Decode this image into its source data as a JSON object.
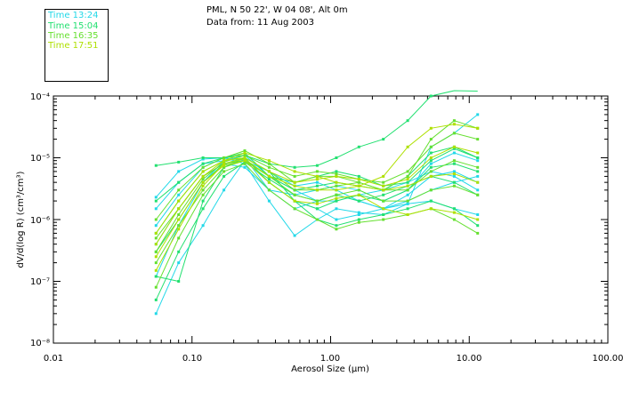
{
  "header": {
    "site": "PML, N 50 22', W 04 08', Alt 0m",
    "date": "Data from: 11 Aug 2003"
  },
  "legend": [
    {
      "label": "Time 13:24",
      "color": "#22d8e8"
    },
    {
      "label": "Time 15:04",
      "color": "#22e070"
    },
    {
      "label": "Time 16:35",
      "color": "#66e030"
    },
    {
      "label": "Time 17:51",
      "color": "#aee000"
    }
  ],
  "chart_data": {
    "type": "line",
    "title": "",
    "xlabel": "Aerosol Size (μm)",
    "ylabel": "dV/d(log R) (cm³/cm³)",
    "xscale": "log",
    "yscale": "log",
    "xlim": [
      0.01,
      100.0
    ],
    "ylim": [
      1e-08,
      0.0001
    ],
    "x_tick_labels": [
      "0.01",
      "0.10",
      "1.00",
      "10.00",
      "100.00"
    ],
    "y_tick_labels": [
      "10⁻⁸",
      "10⁻⁷",
      "10⁻⁶",
      "10⁻⁵",
      "10⁻⁴"
    ],
    "legend_position": "top-left",
    "x": [
      0.055,
      0.08,
      0.12,
      0.17,
      0.24,
      0.36,
      0.55,
      0.8,
      1.1,
      1.6,
      2.4,
      3.6,
      5.3,
      7.8,
      11.5
    ],
    "series": [
      {
        "name": "Time 13:24",
        "color": "#22d8e8",
        "curves": [
          [
            2.3e-06,
            6e-06,
            9.5e-06,
            1e-05,
            8e-06,
            2e-06,
            5.5e-07,
            1e-06,
            1.5e-06,
            1.3e-06,
            1.2e-06,
            1.8e-06,
            1.5e-05,
            2.5e-05,
            5e-05
          ],
          [
            1.5e-06,
            4e-06,
            8e-06,
            9e-06,
            1e-05,
            3e-06,
            1.5e-06,
            2e-06,
            2.5e-06,
            2e-06,
            1.5e-06,
            2.5e-06,
            5e-06,
            6e-06,
            4e-06
          ],
          [
            8e-07,
            2.5e-06,
            7e-06,
            1e-05,
            9e-06,
            4e-06,
            2e-06,
            1.5e-06,
            1e-06,
            1.2e-06,
            1.5e-06,
            1.8e-06,
            2e-06,
            1.5e-06,
            1.2e-06
          ],
          [
            4e-07,
            1.5e-06,
            5e-06,
            8e-06,
            7e-06,
            3e-06,
            2.5e-06,
            3e-06,
            3.5e-06,
            3e-06,
            2e-06,
            3e-06,
            8e-06,
            1.2e-05,
            9e-06
          ],
          [
            1.2e-07,
            8e-07,
            4e-06,
            9e-06,
            1.1e-05,
            5e-06,
            3e-06,
            2e-06,
            2e-06,
            2.5e-06,
            3e-06,
            4e-06,
            6e-06,
            5e-06,
            3e-06
          ],
          [
            3e-08,
            2e-07,
            8e-07,
            3e-06,
            9e-06,
            6e-06,
            3.5e-06,
            4e-06,
            3e-06,
            2e-06,
            1.5e-06,
            2e-06,
            3e-06,
            4e-06,
            5e-06
          ]
        ]
      },
      {
        "name": "Time 15:04",
        "color": "#22e070",
        "curves": [
          [
            7.5e-06,
            8.5e-06,
            1e-05,
            1e-05,
            1.1e-05,
            8e-06,
            7e-06,
            7.5e-06,
            1e-05,
            1.5e-05,
            2e-05,
            4e-05,
            0.0001,
            0.00015,
            0.00012
          ],
          [
            2e-06,
            4e-06,
            8e-06,
            1e-05,
            1.2e-05,
            5e-06,
            3e-06,
            3.5e-06,
            4e-06,
            3.5e-06,
            3e-06,
            5e-06,
            1.2e-05,
            1.5e-05,
            1e-05
          ],
          [
            6e-07,
            2e-06,
            6e-06,
            9e-06,
            1e-05,
            4e-06,
            2e-06,
            1.5e-06,
            2e-06,
            2.5e-06,
            2e-06,
            3e-06,
            7e-06,
            8e-06,
            6e-06
          ],
          [
            3e-07,
            1e-06,
            4e-06,
            8e-06,
            9e-06,
            5e-06,
            4e-06,
            5e-06,
            6e-06,
            5e-06,
            3.5e-06,
            4e-06,
            9e-06,
            1.4e-05,
            1e-05
          ],
          [
            1.2e-07,
            1e-07,
            2e-06,
            7e-06,
            1e-05,
            6e-06,
            2e-06,
            1e-06,
            8e-07,
            1e-06,
            1.2e-06,
            1.5e-06,
            2e-06,
            1.5e-06,
            8e-07
          ],
          [
            5e-08,
            3e-07,
            1.5e-06,
            5e-06,
            8.5e-06,
            4.5e-06,
            2.5e-06,
            2e-06,
            2.5e-06,
            2e-06,
            2.5e-06,
            3.5e-06,
            5e-06,
            4e-06,
            2.5e-06
          ]
        ]
      },
      {
        "name": "Time 16:35",
        "color": "#66e030",
        "curves": [
          [
            1e-06,
            3e-06,
            7e-06,
            1e-05,
            1.3e-05,
            8e-06,
            4e-06,
            5e-06,
            5e-06,
            4e-06,
            3e-06,
            5e-06,
            2e-05,
            4e-05,
            3e-05
          ],
          [
            5e-07,
            1.5e-06,
            5e-06,
            8e-06,
            1e-05,
            6e-06,
            3e-06,
            3e-06,
            3.5e-06,
            4e-06,
            3e-06,
            3e-06,
            6e-06,
            9e-06,
            7e-06
          ],
          [
            2e-07,
            8e-07,
            3e-06,
            7e-06,
            9e-06,
            5e-06,
            2.5e-06,
            2e-06,
            2.5e-06,
            3e-06,
            2e-06,
            2e-06,
            3e-06,
            3.5e-06,
            2.5e-06
          ],
          [
            8e-08,
            5e-07,
            2.5e-06,
            6e-06,
            8e-06,
            3e-06,
            1.5e-06,
            1e-06,
            7e-07,
            9e-07,
            1e-06,
            1.2e-06,
            1.5e-06,
            1e-06,
            6e-07
          ],
          [
            3e-07,
            1.2e-06,
            4.5e-06,
            8.5e-06,
            1.1e-05,
            7e-06,
            5e-06,
            6e-06,
            5.5e-06,
            4.5e-06,
            4e-06,
            6e-06,
            1.5e-05,
            2.5e-05,
            2e-05
          ]
        ]
      },
      {
        "name": "Time 17:51",
        "color": "#aee000",
        "curves": [
          [
            6e-07,
            2e-06,
            6e-06,
            9e-06,
            1e-05,
            6e-06,
            4e-06,
            4.5e-06,
            5e-06,
            4.5e-06,
            3.5e-06,
            4.5e-06,
            1e-05,
            1.5e-05,
            1.2e-05
          ],
          [
            2.5e-07,
            1e-06,
            4e-06,
            7.5e-06,
            9e-06,
            4e-06,
            2e-06,
            1.8e-06,
            2.2e-06,
            2.5e-06,
            1.5e-06,
            1.2e-06,
            1.5e-06,
            1.3e-06,
            1e-06
          ],
          [
            1.5e-07,
            7e-07,
            3.5e-06,
            8e-06,
            9.5e-06,
            5e-06,
            3.5e-06,
            3e-06,
            3e-06,
            3.5e-06,
            3e-06,
            3.5e-06,
            5e-06,
            5.5e-06,
            4e-06
          ],
          [
            4e-07,
            1.5e-06,
            5e-06,
            9e-06,
            1.2e-05,
            9e-06,
            6e-06,
            5e-06,
            4e-06,
            3.5e-06,
            5e-06,
            1.5e-05,
            3e-05,
            3.5e-05,
            3e-05
          ]
        ]
      }
    ]
  }
}
